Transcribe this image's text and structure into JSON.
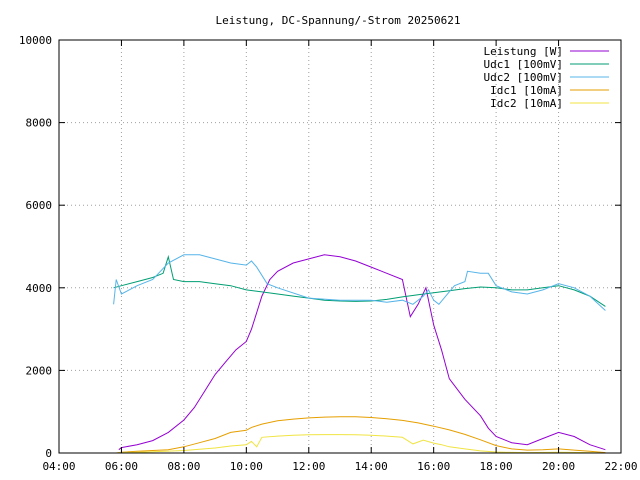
{
  "chart_data": {
    "type": "line",
    "title": "Leistung, DC-Spannung/-Strom 20250621",
    "xlabel": "",
    "ylabel": "",
    "xlim": [
      "04:00",
      "22:00"
    ],
    "ylim": [
      0,
      10000
    ],
    "x_ticks": [
      "04:00",
      "06:00",
      "08:00",
      "10:00",
      "12:00",
      "14:00",
      "16:00",
      "18:00",
      "20:00",
      "22:00"
    ],
    "y_ticks": [
      "0",
      "2000",
      "4000",
      "6000",
      "8000",
      "10000"
    ],
    "grid": true,
    "legend_position": "top-right",
    "series": [
      {
        "name": "Leistung [W]",
        "color": "#9400d3",
        "points": [
          [
            "05:55",
            80
          ],
          [
            "06:00",
            130
          ],
          [
            "06:30",
            200
          ],
          [
            "07:00",
            300
          ],
          [
            "07:30",
            500
          ],
          [
            "08:00",
            800
          ],
          [
            "08:20",
            1100
          ],
          [
            "08:40",
            1500
          ],
          [
            "09:00",
            1900
          ],
          [
            "09:20",
            2200
          ],
          [
            "09:40",
            2500
          ],
          [
            "10:00",
            2700
          ],
          [
            "10:10",
            3000
          ],
          [
            "10:20",
            3400
          ],
          [
            "10:30",
            3800
          ],
          [
            "10:45",
            4200
          ],
          [
            "11:00",
            4400
          ],
          [
            "11:30",
            4600
          ],
          [
            "12:00",
            4700
          ],
          [
            "12:30",
            4800
          ],
          [
            "13:00",
            4750
          ],
          [
            "13:30",
            4650
          ],
          [
            "14:00",
            4500
          ],
          [
            "14:30",
            4350
          ],
          [
            "15:00",
            4200
          ],
          [
            "15:15",
            3300
          ],
          [
            "15:30",
            3600
          ],
          [
            "15:45",
            4000
          ],
          [
            "16:00",
            3100
          ],
          [
            "16:15",
            2500
          ],
          [
            "16:30",
            1800
          ],
          [
            "17:00",
            1300
          ],
          [
            "17:30",
            900
          ],
          [
            "17:45",
            600
          ],
          [
            "18:00",
            400
          ],
          [
            "18:30",
            250
          ],
          [
            "19:00",
            200
          ],
          [
            "19:30",
            350
          ],
          [
            "20:00",
            500
          ],
          [
            "20:30",
            400
          ],
          [
            "21:00",
            200
          ],
          [
            "21:30",
            80
          ]
        ]
      },
      {
        "name": "Udc1 [100mV]",
        "color": "#009e73",
        "points": [
          [
            "05:45",
            4000
          ],
          [
            "06:00",
            4050
          ],
          [
            "06:30",
            4150
          ],
          [
            "07:00",
            4250
          ],
          [
            "07:20",
            4350
          ],
          [
            "07:30",
            4750
          ],
          [
            "07:40",
            4200
          ],
          [
            "08:00",
            4150
          ],
          [
            "08:30",
            4150
          ],
          [
            "09:00",
            4100
          ],
          [
            "09:30",
            4050
          ],
          [
            "10:00",
            3950
          ],
          [
            "10:30",
            3900
          ],
          [
            "11:00",
            3850
          ],
          [
            "11:30",
            3800
          ],
          [
            "12:00",
            3750
          ],
          [
            "12:30",
            3700
          ],
          [
            "13:00",
            3680
          ],
          [
            "13:30",
            3670
          ],
          [
            "14:00",
            3680
          ],
          [
            "14:30",
            3720
          ],
          [
            "15:00",
            3780
          ],
          [
            "15:30",
            3830
          ],
          [
            "16:00",
            3880
          ],
          [
            "16:30",
            3930
          ],
          [
            "17:00",
            3980
          ],
          [
            "17:30",
            4020
          ],
          [
            "18:00",
            4000
          ],
          [
            "18:30",
            3950
          ],
          [
            "19:00",
            3950
          ],
          [
            "19:30",
            4000
          ],
          [
            "20:00",
            4050
          ],
          [
            "20:30",
            3950
          ],
          [
            "21:00",
            3800
          ],
          [
            "21:30",
            3550
          ]
        ]
      },
      {
        "name": "Udc2 [100mV]",
        "color": "#56b4e9",
        "points": [
          [
            "05:45",
            3600
          ],
          [
            "05:50",
            4200
          ],
          [
            "06:00",
            3850
          ],
          [
            "06:30",
            4050
          ],
          [
            "07:00",
            4200
          ],
          [
            "07:30",
            4600
          ],
          [
            "08:00",
            4800
          ],
          [
            "08:30",
            4800
          ],
          [
            "09:00",
            4700
          ],
          [
            "09:30",
            4600
          ],
          [
            "10:00",
            4550
          ],
          [
            "10:10",
            4650
          ],
          [
            "10:20",
            4500
          ],
          [
            "10:40",
            4100
          ],
          [
            "11:00",
            4000
          ],
          [
            "12:00",
            3750
          ],
          [
            "13:00",
            3700
          ],
          [
            "14:00",
            3700
          ],
          [
            "14:30",
            3650
          ],
          [
            "15:00",
            3700
          ],
          [
            "15:20",
            3600
          ],
          [
            "15:40",
            3800
          ],
          [
            "15:50",
            3950
          ],
          [
            "16:00",
            3700
          ],
          [
            "16:10",
            3600
          ],
          [
            "16:20",
            3750
          ],
          [
            "16:40",
            4050
          ],
          [
            "17:00",
            4150
          ],
          [
            "17:05",
            4400
          ],
          [
            "17:30",
            4350
          ],
          [
            "17:45",
            4350
          ],
          [
            "18:00",
            4050
          ],
          [
            "18:30",
            3900
          ],
          [
            "19:00",
            3850
          ],
          [
            "19:30",
            3950
          ],
          [
            "20:00",
            4100
          ],
          [
            "20:30",
            4000
          ],
          [
            "21:00",
            3800
          ],
          [
            "21:30",
            3450
          ]
        ]
      },
      {
        "name": "Idc1 [10mA]",
        "color": "#e69f00",
        "points": [
          [
            "05:50",
            0
          ],
          [
            "06:00",
            20
          ],
          [
            "06:30",
            40
          ],
          [
            "07:00",
            60
          ],
          [
            "07:30",
            80
          ],
          [
            "08:00",
            150
          ],
          [
            "08:30",
            250
          ],
          [
            "09:00",
            350
          ],
          [
            "09:30",
            500
          ],
          [
            "10:00",
            550
          ],
          [
            "10:10",
            620
          ],
          [
            "10:30",
            700
          ],
          [
            "11:00",
            780
          ],
          [
            "11:30",
            820
          ],
          [
            "12:00",
            850
          ],
          [
            "12:30",
            870
          ],
          [
            "13:00",
            880
          ],
          [
            "13:30",
            880
          ],
          [
            "14:00",
            860
          ],
          [
            "14:30",
            830
          ],
          [
            "15:00",
            790
          ],
          [
            "15:30",
            730
          ],
          [
            "16:00",
            650
          ],
          [
            "16:30",
            560
          ],
          [
            "17:00",
            450
          ],
          [
            "17:30",
            320
          ],
          [
            "18:00",
            180
          ],
          [
            "18:30",
            100
          ],
          [
            "19:00",
            70
          ],
          [
            "19:30",
            80
          ],
          [
            "20:00",
            100
          ],
          [
            "20:30",
            70
          ],
          [
            "21:00",
            40
          ],
          [
            "21:30",
            10
          ]
        ]
      },
      {
        "name": "Idc2 [10mA]",
        "color": "#f0e442",
        "points": [
          [
            "05:50",
            0
          ],
          [
            "06:00",
            10
          ],
          [
            "06:30",
            20
          ],
          [
            "07:00",
            30
          ],
          [
            "08:00",
            60
          ],
          [
            "09:00",
            120
          ],
          [
            "09:30",
            170
          ],
          [
            "10:00",
            200
          ],
          [
            "10:10",
            280
          ],
          [
            "10:20",
            150
          ],
          [
            "10:30",
            380
          ],
          [
            "11:00",
            410
          ],
          [
            "11:30",
            430
          ],
          [
            "12:00",
            440
          ],
          [
            "12:30",
            445
          ],
          [
            "13:00",
            445
          ],
          [
            "13:30",
            440
          ],
          [
            "14:00",
            430
          ],
          [
            "14:30",
            410
          ],
          [
            "15:00",
            380
          ],
          [
            "15:20",
            220
          ],
          [
            "15:40",
            310
          ],
          [
            "16:00",
            240
          ],
          [
            "16:15",
            200
          ],
          [
            "16:30",
            150
          ],
          [
            "17:00",
            100
          ],
          [
            "17:30",
            50
          ],
          [
            "18:00",
            25
          ],
          [
            "18:30",
            15
          ],
          [
            "19:00",
            10
          ],
          [
            "20:00",
            20
          ],
          [
            "21:00",
            10
          ],
          [
            "21:30",
            0
          ]
        ]
      }
    ]
  }
}
